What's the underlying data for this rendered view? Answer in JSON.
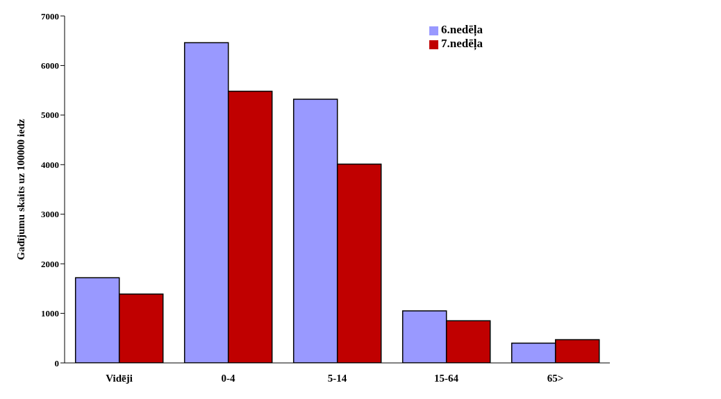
{
  "chart_data": {
    "type": "bar",
    "ylabel": "Gadījumu skaits uz 100000 iedz",
    "categories": [
      "Vidēji",
      "0-4",
      "5-14",
      "15-64",
      "65>"
    ],
    "series": [
      {
        "name": "6.nedēļa",
        "color": "#9999ff",
        "values": [
          1720,
          6460,
          5320,
          1050,
          400
        ]
      },
      {
        "name": "7.nedēļa",
        "color": "#c00000",
        "values": [
          1390,
          5480,
          4010,
          850,
          470
        ]
      }
    ],
    "ylim": [
      0,
      7000
    ],
    "yticks": [
      0,
      1000,
      2000,
      3000,
      4000,
      5000,
      6000,
      7000
    ],
    "grid": false,
    "legend": "top right"
  }
}
